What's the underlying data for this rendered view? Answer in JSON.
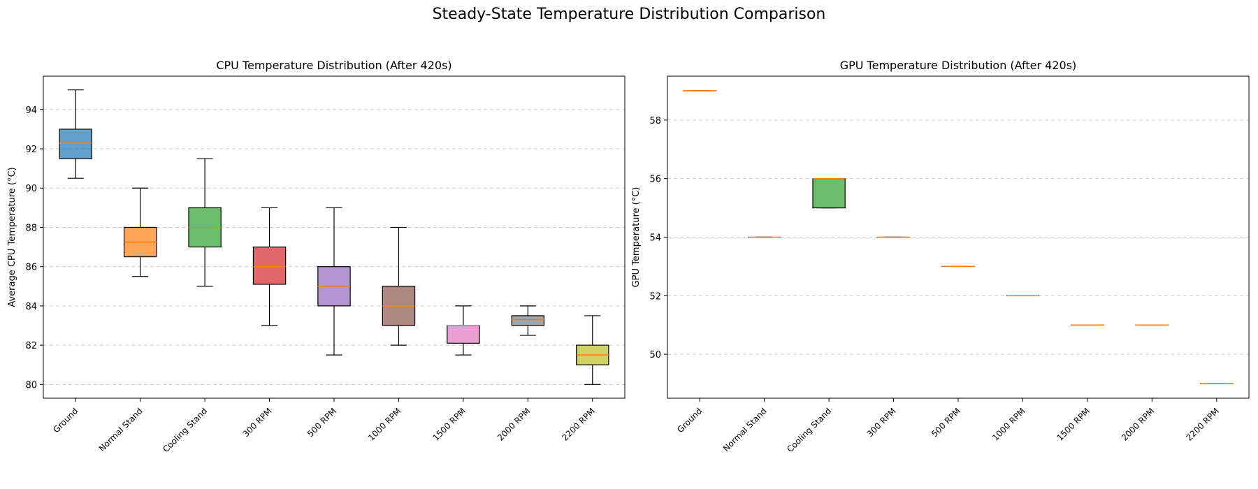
{
  "figure": {
    "title": "Steady-State Temperature Distribution Comparison"
  },
  "chart_data": [
    {
      "type": "box",
      "title": "CPU Temperature Distribution (After 420s)",
      "xlabel": "",
      "ylabel": "Average CPU Temperature (°C)",
      "categories": [
        "Ground",
        "Normal Stand",
        "Cooling Stand",
        "300 RPM",
        "500 RPM",
        "1000 RPM",
        "1500 RPM",
        "2000 RPM",
        "2200 RPM"
      ],
      "boxes": [
        {
          "whislo": 90.5,
          "q1": 91.5,
          "med": 92.3,
          "q3": 93.0,
          "whishi": 95.0
        },
        {
          "whislo": 85.5,
          "q1": 86.5,
          "med": 87.25,
          "q3": 88.0,
          "whishi": 90.0
        },
        {
          "whislo": 85.0,
          "q1": 87.0,
          "med": 88.0,
          "q3": 89.0,
          "whishi": 91.5
        },
        {
          "whislo": 83.0,
          "q1": 85.1,
          "med": 86.0,
          "q3": 87.0,
          "whishi": 89.0
        },
        {
          "whislo": 81.5,
          "q1": 84.0,
          "med": 85.0,
          "q3": 86.0,
          "whishi": 89.0
        },
        {
          "whislo": 82.0,
          "q1": 83.0,
          "med": 84.0,
          "q3": 85.0,
          "whishi": 88.0
        },
        {
          "whislo": 81.5,
          "q1": 82.1,
          "med": 83.0,
          "q3": 83.0,
          "whishi": 84.0
        },
        {
          "whislo": 82.5,
          "q1": 83.0,
          "med": 83.3,
          "q3": 83.5,
          "whishi": 84.0
        },
        {
          "whislo": 80.0,
          "q1": 81.0,
          "med": 81.5,
          "q3": 82.0,
          "whishi": 83.5
        }
      ],
      "ylim": [
        79.3,
        95.7
      ],
      "yticks": [
        80,
        82,
        84,
        86,
        88,
        90,
        92,
        94
      ],
      "grid": "y-dashed"
    },
    {
      "type": "box",
      "title": "GPU Temperature Distribution (After 420s)",
      "xlabel": "",
      "ylabel": "GPU Temperature (°C)",
      "categories": [
        "Ground",
        "Normal Stand",
        "Cooling Stand",
        "300 RPM",
        "500 RPM",
        "1000 RPM",
        "1500 RPM",
        "2000 RPM",
        "2200 RPM"
      ],
      "boxes": [
        {
          "whislo": 59.0,
          "q1": 59.0,
          "med": 59.0,
          "q3": 59.0,
          "whishi": 59.0
        },
        {
          "whislo": 54.0,
          "q1": 54.0,
          "med": 54.0,
          "q3": 54.0,
          "whishi": 54.0
        },
        {
          "whislo": 55.0,
          "q1": 55.0,
          "med": 56.0,
          "q3": 56.0,
          "whishi": 56.0
        },
        {
          "whislo": 54.0,
          "q1": 54.0,
          "med": 54.0,
          "q3": 54.0,
          "whishi": 54.0
        },
        {
          "whislo": 53.0,
          "q1": 53.0,
          "med": 53.0,
          "q3": 53.0,
          "whishi": 53.0
        },
        {
          "whislo": 52.0,
          "q1": 52.0,
          "med": 52.0,
          "q3": 52.0,
          "whishi": 52.0
        },
        {
          "whislo": 51.0,
          "q1": 51.0,
          "med": 51.0,
          "q3": 51.0,
          "whishi": 51.0
        },
        {
          "whislo": 51.0,
          "q1": 51.0,
          "med": 51.0,
          "q3": 51.0,
          "whishi": 51.0
        },
        {
          "whislo": 49.0,
          "q1": 49.0,
          "med": 49.0,
          "q3": 49.0,
          "whishi": 49.0
        }
      ],
      "ylim": [
        48.5,
        59.5
      ],
      "yticks": [
        50,
        52,
        54,
        56,
        58
      ],
      "grid": "y-dashed"
    }
  ],
  "style": {
    "box_colors": [
      "#1f77b4",
      "#ff7f0e",
      "#2ca02c",
      "#d62728",
      "#9467bd",
      "#8c564b",
      "#e377c2",
      "#7f7f7f",
      "#bcbd22"
    ],
    "median_color": "#ff7f0e",
    "grid_color": "#cccccc"
  }
}
